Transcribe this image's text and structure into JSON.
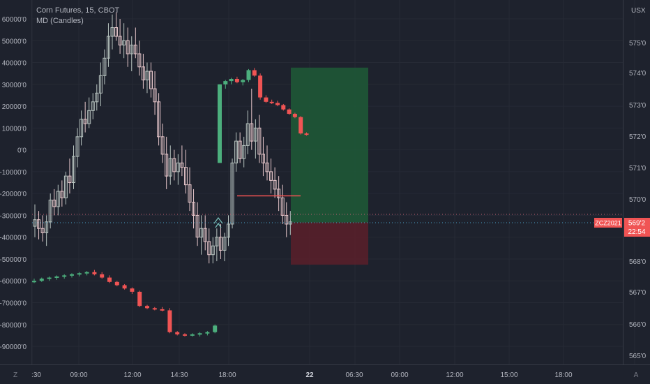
{
  "header": {
    "symbol_line": "Corn Futures, 15, CBOT",
    "indicator_line": "MD (Candles)"
  },
  "left_scale": {
    "labels": [
      "60000'0",
      "50000'0",
      "40000'0",
      "30000'0",
      "20000'0",
      "10000'0",
      "0'0",
      "-10000'0",
      "-20000'0",
      "-30000'0",
      "-40000'0",
      "-50000'0",
      "-60000'0",
      "-70000'0",
      "-80000'0",
      "-90000'0"
    ]
  },
  "right_scale": {
    "currency": "USX",
    "labels": [
      "575'0",
      "574'0",
      "573'0",
      "572'0",
      "571'0",
      "570'0",
      "568'0",
      "567'0",
      "566'0",
      "565'0"
    ],
    "symbol_tag": "ZCZ2021",
    "last_price": "569'2",
    "countdown": "22:54"
  },
  "time_axis": {
    "labels": [
      ":30",
      "09:00",
      "12:00",
      "14:30",
      "18:00",
      "22",
      "06:30",
      "09:00",
      "12:00",
      "15:00",
      "18:00"
    ],
    "left_button": "Z",
    "right_button": "A"
  },
  "colors": {
    "background": "#1e222d",
    "up": "#4caf7d",
    "down": "#f05454",
    "text": "#b2b5be",
    "tag": "#f05454",
    "profit_zone": "#1f5a37",
    "loss_zone": "#5a1f2a"
  },
  "chart_data": {
    "type": "candlestick",
    "title": "Corn Futures, 15, CBOT",
    "instrument": "ZCZ2021",
    "price_scale": {
      "unit": "USX",
      "ylim": [
        564.7,
        576.0
      ]
    },
    "indicator_scale": {
      "ylim": [
        -103000,
        67000
      ]
    },
    "last_price": 569.2,
    "price_candles": [
      {
        "o": -35000,
        "h": -25000,
        "l": -40000,
        "c": -32000
      },
      {
        "o": -32000,
        "h": -28000,
        "l": -41000,
        "c": -36000
      },
      {
        "o": -36000,
        "h": -30000,
        "l": -42000,
        "c": -38000
      },
      {
        "o": -38000,
        "h": -30000,
        "l": -44000,
        "c": -33000
      },
      {
        "o": -33000,
        "h": -20000,
        "l": -36000,
        "c": -23000
      },
      {
        "o": -23000,
        "h": -18000,
        "l": -30000,
        "c": -26000
      },
      {
        "o": -26000,
        "h": -16000,
        "l": -30000,
        "c": -19000
      },
      {
        "o": -19000,
        "h": -14000,
        "l": -26000,
        "c": -22000
      },
      {
        "o": -22000,
        "h": -10000,
        "l": -25000,
        "c": -12000
      },
      {
        "o": -12000,
        "h": -4000,
        "l": -20000,
        "c": -15000
      },
      {
        "o": -15000,
        "h": 2000,
        "l": -18000,
        "c": -3000
      },
      {
        "o": -3000,
        "h": 10000,
        "l": -8000,
        "c": 6000
      },
      {
        "o": 6000,
        "h": 18000,
        "l": 2000,
        "c": 14000
      },
      {
        "o": 14000,
        "h": 22000,
        "l": 8000,
        "c": 12000
      },
      {
        "o": 12000,
        "h": 24000,
        "l": 10000,
        "c": 18000
      },
      {
        "o": 18000,
        "h": 26000,
        "l": 14000,
        "c": 22000
      },
      {
        "o": 22000,
        "h": 30000,
        "l": 18000,
        "c": 26000
      },
      {
        "o": 26000,
        "h": 40000,
        "l": 20000,
        "c": 34000
      },
      {
        "o": 34000,
        "h": 46000,
        "l": 30000,
        "c": 42000
      },
      {
        "o": 42000,
        "h": 58000,
        "l": 38000,
        "c": 52000
      },
      {
        "o": 52000,
        "h": 62000,
        "l": 46000,
        "c": 56000
      },
      {
        "o": 56000,
        "h": 63000,
        "l": 50000,
        "c": 52000
      },
      {
        "o": 52000,
        "h": 60000,
        "l": 44000,
        "c": 48000
      },
      {
        "o": 48000,
        "h": 58000,
        "l": 42000,
        "c": 50000
      },
      {
        "o": 50000,
        "h": 56000,
        "l": 38000,
        "c": 44000
      },
      {
        "o": 44000,
        "h": 52000,
        "l": 36000,
        "c": 48000
      },
      {
        "o": 48000,
        "h": 56000,
        "l": 42000,
        "c": 44000
      },
      {
        "o": 44000,
        "h": 50000,
        "l": 34000,
        "c": 38000
      },
      {
        "o": 38000,
        "h": 44000,
        "l": 28000,
        "c": 32000
      },
      {
        "o": 32000,
        "h": 40000,
        "l": 26000,
        "c": 36000
      },
      {
        "o": 36000,
        "h": 40000,
        "l": 24000,
        "c": 28000
      },
      {
        "o": 28000,
        "h": 36000,
        "l": 16000,
        "c": 22000
      },
      {
        "o": 22000,
        "h": 26000,
        "l": 2000,
        "c": 6000
      },
      {
        "o": 6000,
        "h": 12000,
        "l": -6000,
        "c": -2000
      },
      {
        "o": -2000,
        "h": 6000,
        "l": -18000,
        "c": -12000
      },
      {
        "o": -12000,
        "h": 2000,
        "l": -16000,
        "c": -4000
      },
      {
        "o": -4000,
        "h": 0,
        "l": -14000,
        "c": -10000
      },
      {
        "o": -10000,
        "h": -2000,
        "l": -16000,
        "c": -6000
      },
      {
        "o": -6000,
        "h": 2000,
        "l": -12000,
        "c": -8000
      },
      {
        "o": -8000,
        "h": 0,
        "l": -20000,
        "c": -16000
      },
      {
        "o": -16000,
        "h": -8000,
        "l": -28000,
        "c": -24000
      },
      {
        "o": -24000,
        "h": -18000,
        "l": -36000,
        "c": -30000
      },
      {
        "o": -30000,
        "h": -24000,
        "l": -44000,
        "c": -40000
      },
      {
        "o": -40000,
        "h": -30000,
        "l": -48000,
        "c": -36000
      },
      {
        "o": -36000,
        "h": -30000,
        "l": -46000,
        "c": -42000
      },
      {
        "o": -42000,
        "h": -36000,
        "l": -52000,
        "c": -48000
      },
      {
        "o": -48000,
        "h": -40000,
        "l": -52000,
        "c": -44000
      },
      {
        "o": -44000,
        "h": -36000,
        "l": -51000,
        "c": -40000
      },
      {
        "o": -40000,
        "h": -34000,
        "l": -50000,
        "c": -46000
      },
      {
        "o": -46000,
        "h": -38000,
        "l": -51000,
        "c": -40000
      },
      {
        "o": -40000,
        "h": -30000,
        "l": -44000,
        "c": -34000
      },
      {
        "o": -34000,
        "h": -4000,
        "l": -36000,
        "c": -6000
      },
      {
        "o": -6000,
        "h": 8000,
        "l": -10000,
        "c": 4000
      },
      {
        "o": 4000,
        "h": 8000,
        "l": -6000,
        "c": -4000
      },
      {
        "o": -4000,
        "h": 6000,
        "l": -8000,
        "c": 2000
      },
      {
        "o": 2000,
        "h": 18000,
        "l": -2000,
        "c": 12000
      },
      {
        "o": 12000,
        "h": 28000,
        "l": 0,
        "c": 4000
      },
      {
        "o": 4000,
        "h": 14000,
        "l": -4000,
        "c": 10000
      },
      {
        "o": 10000,
        "h": 16000,
        "l": -6000,
        "c": -2000
      },
      {
        "o": -2000,
        "h": 6000,
        "l": -12000,
        "c": -6000
      },
      {
        "o": -6000,
        "h": 2000,
        "l": -14000,
        "c": -10000
      },
      {
        "o": -10000,
        "h": -4000,
        "l": -20000,
        "c": -14000
      },
      {
        "o": -14000,
        "h": -8000,
        "l": -22000,
        "c": -18000
      },
      {
        "o": -18000,
        "h": -12000,
        "l": -28000,
        "c": -22000
      },
      {
        "o": -22000,
        "h": -16000,
        "l": -34000,
        "c": -30000
      },
      {
        "o": -30000,
        "h": -24000,
        "l": -40000,
        "c": -34000
      },
      {
        "o": -34000,
        "h": -28000,
        "l": -39000,
        "c": -33000
      }
    ],
    "indicator_candles": [
      {
        "o": -60000,
        "h": -59000,
        "l": -61000,
        "c": -60000
      },
      {
        "o": -60000,
        "h": -58500,
        "l": -60500,
        "c": -59000
      },
      {
        "o": -59000,
        "h": -58000,
        "l": -60000,
        "c": -58500
      },
      {
        "o": -58500,
        "h": -57500,
        "l": -59500,
        "c": -58000
      },
      {
        "o": -58000,
        "h": -57000,
        "l": -59000,
        "c": -57500
      },
      {
        "o": -57500,
        "h": -56500,
        "l": -58500,
        "c": -57000
      },
      {
        "o": -57000,
        "h": -56000,
        "l": -58000,
        "c": -56500
      },
      {
        "o": -56500,
        "h": -55500,
        "l": -57500,
        "c": -56000
      },
      {
        "o": -56000,
        "h": -55000,
        "l": -57500,
        "c": -57000
      },
      {
        "o": -57000,
        "h": -56000,
        "l": -59000,
        "c": -58500
      },
      {
        "o": -58500,
        "h": -57500,
        "l": -61000,
        "c": -60500
      },
      {
        "o": -60500,
        "h": -60000,
        "l": -62500,
        "c": -62000
      },
      {
        "o": -62000,
        "h": -61500,
        "l": -64000,
        "c": -63500
      },
      {
        "o": -63500,
        "h": -63000,
        "l": -66000,
        "c": -65000
      },
      {
        "o": -65000,
        "h": -64500,
        "l": -72000,
        "c": -71500
      },
      {
        "o": -71500,
        "h": -71000,
        "l": -73000,
        "c": -72500
      },
      {
        "o": -72500,
        "h": -72000,
        "l": -73500,
        "c": -73000
      },
      {
        "o": -73000,
        "h": -72000,
        "l": -74000,
        "c": -73500
      },
      {
        "o": -73500,
        "h": -72500,
        "l": -84000,
        "c": -83500
      },
      {
        "o": -83500,
        "h": -83000,
        "l": -85000,
        "c": -84500
      },
      {
        "o": -84500,
        "h": -84000,
        "l": -85500,
        "c": -85000
      },
      {
        "o": -85000,
        "h": -84000,
        "l": -85500,
        "c": -84500
      },
      {
        "o": -84500,
        "h": -83500,
        "l": -85500,
        "c": -84000
      },
      {
        "o": -84000,
        "h": -83000,
        "l": -85000,
        "c": -83500
      },
      {
        "o": -83500,
        "h": -80000,
        "l": -84000,
        "c": -80500
      },
      {
        "o": -6000,
        "h": 30000,
        "l": -6000,
        "c": 30000
      },
      {
        "o": 30000,
        "h": 32000,
        "l": 28000,
        "c": 31500
      },
      {
        "o": 31500,
        "h": 33000,
        "l": 30000,
        "c": 32500
      },
      {
        "o": 32500,
        "h": 33500,
        "l": 30500,
        "c": 31000
      },
      {
        "o": 31000,
        "h": 32500,
        "l": 29500,
        "c": 32000
      },
      {
        "o": 32000,
        "h": 37000,
        "l": 31000,
        "c": 36500
      },
      {
        "o": 36500,
        "h": 37500,
        "l": 33500,
        "c": 34000
      },
      {
        "o": 34000,
        "h": 35000,
        "l": 23000,
        "c": 24000
      },
      {
        "o": 24000,
        "h": 25000,
        "l": 21500,
        "c": 22000
      },
      {
        "o": 22000,
        "h": 23000,
        "l": 21000,
        "c": 21500
      },
      {
        "o": 21500,
        "h": 22500,
        "l": 20000,
        "c": 20500
      },
      {
        "o": 20500,
        "h": 21000,
        "l": 18000,
        "c": 18500
      },
      {
        "o": 18500,
        "h": 19000,
        "l": 16000,
        "c": 16500
      },
      {
        "o": 16500,
        "h": 17000,
        "l": 14500,
        "c": 15000
      },
      {
        "o": 15000,
        "h": 15500,
        "l": 7000,
        "c": 7500
      },
      {
        "o": 7500,
        "h": 8000,
        "l": 6500,
        "c": 7000
      }
    ],
    "position_tool": {
      "entry": 569.25,
      "target": 574.2,
      "stop": 567.9
    },
    "horizontal_level": 570.1,
    "ticks_left": [
      "60000'0",
      "50000'0",
      "40000'0",
      "30000'0",
      "20000'0",
      "10000'0",
      "0'0",
      "-10000'0",
      "-20000'0",
      "-30000'0",
      "-40000'0",
      "-50000'0",
      "-60000'0",
      "-70000'0",
      "-80000'0",
      "-90000'0"
    ],
    "ticks_right": [
      "575'0",
      "574'0",
      "573'0",
      "572'0",
      "571'0",
      "570'0",
      "568'0",
      "567'0",
      "566'0",
      "565'0"
    ],
    "ticks_x": [
      ":30",
      "09:00",
      "12:00",
      "14:30",
      "18:00",
      "22",
      "06:30",
      "09:00",
      "12:00",
      "15:00",
      "18:00"
    ]
  }
}
